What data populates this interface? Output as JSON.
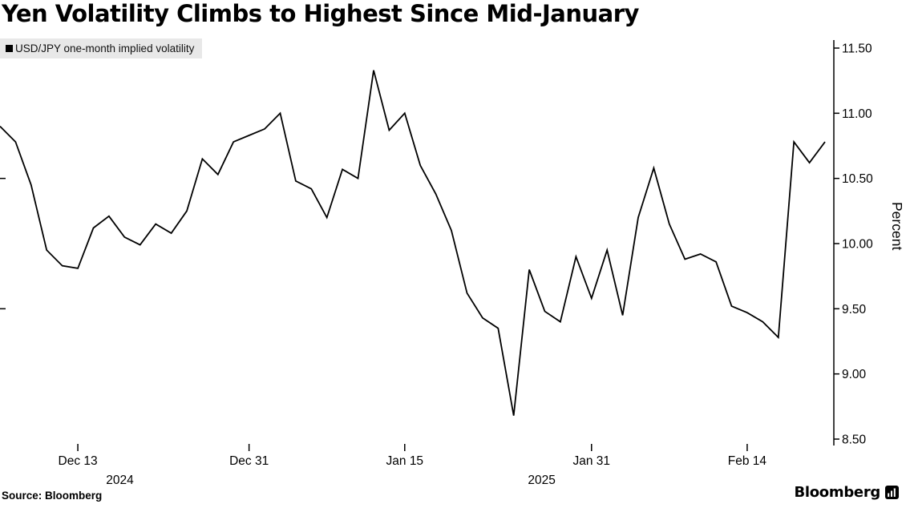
{
  "title": "Yen Volatility Climbs to Highest Since Mid-January",
  "legend": {
    "label": "USD/JPY one-month implied volatility"
  },
  "source": "Source: Bloomberg",
  "brand": {
    "name": "Bloomberg"
  },
  "chart_data": {
    "type": "line",
    "title": "Yen Volatility Climbs to Highest Since Mid-January",
    "xlabel": "",
    "ylabel": "Percent",
    "ylim": [
      8.5,
      11.5
    ],
    "grid": false,
    "legend_position": "top-left",
    "line_color": "#000000",
    "series": [
      {
        "name": "USD/JPY one-month implied volatility",
        "dates": [
          "2024-12-06",
          "2024-12-09",
          "2024-12-10",
          "2024-12-11",
          "2024-12-12",
          "2024-12-13",
          "2024-12-16",
          "2024-12-17",
          "2024-12-18",
          "2024-12-19",
          "2024-12-20",
          "2024-12-23",
          "2024-12-24",
          "2024-12-26",
          "2024-12-27",
          "2024-12-30",
          "2024-12-31",
          "2025-01-02",
          "2025-01-03",
          "2025-01-06",
          "2025-01-07",
          "2025-01-08",
          "2025-01-09",
          "2025-01-10",
          "2025-01-13",
          "2025-01-14",
          "2025-01-15",
          "2025-01-16",
          "2025-01-17",
          "2025-01-20",
          "2025-01-21",
          "2025-01-22",
          "2025-01-23",
          "2025-01-24",
          "2025-01-27",
          "2025-01-28",
          "2025-01-29",
          "2025-01-30",
          "2025-01-31",
          "2025-02-03",
          "2025-02-04",
          "2025-02-05",
          "2025-02-06",
          "2025-02-07",
          "2025-02-10",
          "2025-02-11",
          "2025-02-12",
          "2025-02-13",
          "2025-02-14",
          "2025-02-17",
          "2025-02-18",
          "2025-02-19",
          "2025-02-20",
          "2025-02-21"
        ],
        "values": [
          10.9,
          10.78,
          10.45,
          9.95,
          9.83,
          9.81,
          10.12,
          10.21,
          10.05,
          9.99,
          10.15,
          10.08,
          10.25,
          10.65,
          10.53,
          10.78,
          10.83,
          10.88,
          11.0,
          10.48,
          10.42,
          10.2,
          10.57,
          10.5,
          11.33,
          10.87,
          11.0,
          10.6,
          10.38,
          10.1,
          9.62,
          9.43,
          9.35,
          8.68,
          9.8,
          9.48,
          9.4,
          9.9,
          9.58,
          9.95,
          9.45,
          10.2,
          10.58,
          10.15,
          9.88,
          9.92,
          9.86,
          9.52,
          9.47,
          9.4,
          9.28,
          10.78,
          10.62,
          10.78
        ]
      }
    ],
    "y_ticks": [
      {
        "label": "11.50",
        "value": 11.5
      },
      {
        "label": "11.00",
        "value": 11.0
      },
      {
        "label": "10.50",
        "value": 10.5
      },
      {
        "label": "10.00",
        "value": 10.0
      },
      {
        "label": "9.50",
        "value": 9.5
      },
      {
        "label": "9.00",
        "value": 9.0
      },
      {
        "label": "8.50",
        "value": 8.5
      }
    ],
    "left_edge_ticks": [
      10.5,
      9.5
    ],
    "x_ticks": [
      {
        "label": "Dec 13",
        "index": 5
      },
      {
        "label": "Dec 31",
        "index": 16
      },
      {
        "label": "Jan 15",
        "index": 26
      },
      {
        "label": "Jan 31",
        "index": 38
      },
      {
        "label": "Feb 14",
        "index": 48
      }
    ],
    "x_year_labels": [
      {
        "label": "2024",
        "index": 7.7
      },
      {
        "label": "2025",
        "index": 34.8
      }
    ]
  }
}
